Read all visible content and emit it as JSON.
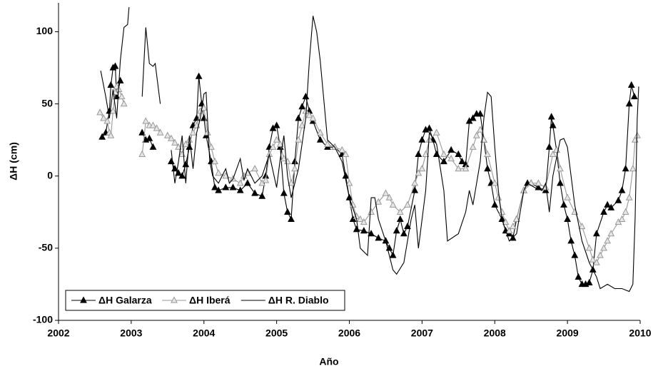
{
  "chart_data": {
    "type": "line",
    "x_label": "Año",
    "y_label": "ΔH (cm)",
    "xlim": [
      2002,
      2010
    ],
    "xticks": [
      2002,
      2003,
      2004,
      2005,
      2006,
      2007,
      2008,
      2009,
      2010
    ],
    "ylim": [
      -100,
      120
    ],
    "yticks": [
      -100,
      -50,
      0,
      50,
      100
    ],
    "legend": "lower left",
    "series": [
      {
        "name": "ΔH Galarza",
        "color": "#000000",
        "marker": "filled-triangle",
        "x": [
          2002.6,
          2002.65,
          2002.7,
          2002.72,
          2002.75,
          2002.78,
          2002.8,
          2002.85,
          2003.0,
          2003.15,
          2003.2,
          2003.25,
          2003.3,
          2003.45,
          2003.55,
          2003.6,
          2003.65,
          2003.7,
          2003.75,
          2003.8,
          2003.85,
          2003.9,
          2003.93,
          2003.97,
          2004.0,
          2004.03,
          2004.1,
          2004.15,
          2004.2,
          2004.3,
          2004.4,
          2004.5,
          2004.6,
          2004.7,
          2004.8,
          2004.85,
          2004.9,
          2004.95,
          2005.0,
          2005.05,
          2005.1,
          2005.15,
          2005.2,
          2005.25,
          2005.3,
          2005.35,
          2005.4,
          2005.45,
          2005.5,
          2005.6,
          2005.7,
          2005.8,
          2005.9,
          2005.95,
          2006.0,
          2006.05,
          2006.1,
          2006.2,
          2006.3,
          2006.4,
          2006.5,
          2006.55,
          2006.6,
          2006.65,
          2006.7,
          2006.75,
          2006.8,
          2006.9,
          2006.95,
          2007.0,
          2007.05,
          2007.1,
          2007.15,
          2007.2,
          2007.3,
          2007.4,
          2007.5,
          2007.55,
          2007.6,
          2007.65,
          2007.7,
          2007.75,
          2007.8,
          2007.85,
          2007.9,
          2007.95,
          2008.0,
          2008.1,
          2008.15,
          2008.2,
          2008.25,
          2008.3,
          2008.4,
          2008.45,
          2008.5,
          2008.6,
          2008.7,
          2008.75,
          2008.78,
          2008.8,
          2008.85,
          2008.9,
          2008.95,
          2009.0,
          2009.05,
          2009.1,
          2009.15,
          2009.2,
          2009.25,
          2009.3,
          2009.35,
          2009.4,
          2009.5,
          2009.55,
          2009.6,
          2009.7,
          2009.75,
          2009.8,
          2009.85,
          2009.88,
          2009.92
        ],
        "values": [
          27,
          30,
          45,
          63,
          75,
          76,
          55,
          66,
          null,
          30,
          25,
          26,
          20,
          null,
          10,
          5,
          2,
          0,
          8,
          20,
          35,
          40,
          69,
          50,
          40,
          28,
          10,
          -8,
          -10,
          -8,
          -8,
          -10,
          -5,
          -12,
          -14,
          0,
          20,
          33,
          35,
          20,
          -12,
          -25,
          -30,
          10,
          40,
          48,
          55,
          45,
          38,
          25,
          20,
          20,
          15,
          0,
          -15,
          -30,
          -37,
          -38,
          -40,
          -43,
          -45,
          -50,
          -55,
          -38,
          -30,
          -40,
          -35,
          -10,
          15,
          25,
          32,
          33,
          25,
          15,
          10,
          18,
          15,
          10,
          8,
          38,
          40,
          43,
          43,
          25,
          5,
          -5,
          -20,
          -30,
          -38,
          -40,
          -43,
          -30,
          -10,
          -5,
          -5,
          -8,
          -10,
          20,
          41,
          35,
          18,
          -5,
          -20,
          -30,
          -45,
          -55,
          -70,
          -75,
          -75,
          -74,
          -65,
          -40,
          -25,
          -20,
          -22,
          -17,
          -10,
          5,
          50,
          63,
          55
        ]
      },
      {
        "name": "ΔH Iberá",
        "color": "#999999",
        "marker": "open-triangle",
        "x": [
          2002.57,
          2002.62,
          2002.67,
          2002.7,
          2002.72,
          2002.75,
          2002.78,
          2002.8,
          2002.83,
          2002.87,
          2002.9,
          2003.0,
          2003.15,
          2003.2,
          2003.25,
          2003.3,
          2003.35,
          2003.4,
          2003.45,
          2003.5,
          2003.55,
          2003.6,
          2003.65,
          2003.7,
          2003.75,
          2003.8,
          2003.85,
          2003.9,
          2003.95,
          2004.0,
          2004.05,
          2004.1,
          2004.15,
          2004.2,
          2004.3,
          2004.4,
          2004.5,
          2004.55,
          2004.6,
          2004.7,
          2004.8,
          2004.85,
          2004.9,
          2004.95,
          2005.0,
          2005.05,
          2005.1,
          2005.15,
          2005.2,
          2005.25,
          2005.3,
          2005.35,
          2005.4,
          2005.45,
          2005.5,
          2005.6,
          2005.7,
          2005.8,
          2005.9,
          2005.95,
          2006.0,
          2006.05,
          2006.1,
          2006.15,
          2006.2,
          2006.3,
          2006.4,
          2006.5,
          2006.55,
          2006.6,
          2006.7,
          2006.8,
          2006.9,
          2006.95,
          2007.0,
          2007.05,
          2007.1,
          2007.2,
          2007.3,
          2007.4,
          2007.5,
          2007.6,
          2007.7,
          2007.75,
          2007.8,
          2007.85,
          2007.9,
          2008.0,
          2008.05,
          2008.1,
          2008.15,
          2008.2,
          2008.25,
          2008.3,
          2008.4,
          2008.5,
          2008.6,
          2008.7,
          2008.8,
          2008.85,
          2008.9,
          2009.0,
          2009.1,
          2009.2,
          2009.3,
          2009.35,
          2009.4,
          2009.45,
          2009.5,
          2009.55,
          2009.6,
          2009.7,
          2009.75,
          2009.8,
          2009.85,
          2009.9,
          2009.93,
          2009.96
        ],
        "values": [
          44,
          40,
          38,
          30,
          28,
          45,
          58,
          62,
          60,
          55,
          50,
          null,
          15,
          38,
          35,
          35,
          33,
          30,
          null,
          28,
          26,
          23,
          20,
          15,
          22,
          25,
          30,
          35,
          45,
          47,
          30,
          20,
          10,
          2,
          0,
          -2,
          -5,
          0,
          2,
          5,
          -5,
          -3,
          15,
          20,
          25,
          22,
          12,
          10,
          -5,
          5,
          25,
          35,
          45,
          42,
          40,
          30,
          22,
          20,
          18,
          15,
          -5,
          -20,
          -28,
          -30,
          -32,
          -25,
          -18,
          -12,
          -15,
          -20,
          -25,
          -20,
          -5,
          2,
          5,
          15,
          25,
          30,
          15,
          12,
          5,
          5,
          20,
          28,
          32,
          25,
          15,
          -5,
          -15,
          -25,
          -32,
          -38,
          -35,
          -30,
          -10,
          -5,
          -5,
          -8,
          15,
          18,
          5,
          -15,
          -25,
          -35,
          -50,
          -58,
          -60,
          -55,
          -50,
          -45,
          -40,
          -32,
          -30,
          -25,
          -15,
          5,
          25,
          28
        ]
      },
      {
        "name": "ΔH R. Diablo",
        "color": "#000000",
        "marker": "none",
        "x": [
          2002.58,
          2002.65,
          2002.7,
          2002.75,
          2002.8,
          2002.85,
          2002.9,
          2002.95,
          2002.97,
          2003.05,
          2003.15,
          2003.2,
          2003.25,
          2003.3,
          2003.33,
          2003.4,
          2003.48,
          2003.55,
          2003.6,
          2003.65,
          2003.7,
          2003.75,
          2003.8,
          2003.85,
          2003.9,
          2003.95,
          2004.0,
          2004.03,
          2004.08,
          2004.12,
          2004.2,
          2004.3,
          2004.35,
          2004.4,
          2004.5,
          2004.55,
          2004.6,
          2004.7,
          2004.8,
          2004.9,
          2005.0,
          2005.05,
          2005.1,
          2005.15,
          2005.2,
          2005.3,
          2005.4,
          2005.45,
          2005.5,
          2005.55,
          2005.6,
          2005.7,
          2005.8,
          2005.9,
          2006.0,
          2006.1,
          2006.15,
          2006.25,
          2006.3,
          2006.35,
          2006.4,
          2006.5,
          2006.6,
          2006.65,
          2006.75,
          2006.85,
          2006.9,
          2006.95,
          2007.05,
          2007.1,
          2007.2,
          2007.3,
          2007.35,
          2007.5,
          2007.6,
          2007.65,
          2007.7,
          2007.8,
          2007.85,
          2007.9,
          2007.95,
          2008.0,
          2008.05,
          2008.1,
          2008.2,
          2008.3,
          2008.4,
          2008.45,
          2008.55,
          2008.65,
          2008.7,
          2008.75,
          2008.8,
          2008.9,
          2008.95,
          2009.0,
          2009.1,
          2009.2,
          2009.3,
          2009.4,
          2009.45,
          2009.55,
          2009.65,
          2009.75,
          2009.85,
          2009.9,
          2009.93,
          2009.96,
          2009.98
        ],
        "values": [
          73,
          55,
          40,
          60,
          40,
          80,
          103,
          105,
          117,
          null,
          55,
          103,
          78,
          76,
          78,
          50,
          null,
          18,
          -5,
          10,
          28,
          -5,
          28,
          5,
          30,
          40,
          57,
          58,
          10,
          0,
          -5,
          5,
          -5,
          -2,
          12,
          -3,
          5,
          -5,
          0,
          15,
          -8,
          12,
          28,
          0,
          -15,
          5,
          40,
          80,
          111,
          100,
          80,
          25,
          20,
          10,
          -15,
          -30,
          -50,
          -55,
          -15,
          -15,
          -30,
          -45,
          -65,
          -68,
          -60,
          -30,
          -20,
          -50,
          -10,
          30,
          22,
          -10,
          -45,
          -40,
          -25,
          -10,
          -20,
          10,
          40,
          58,
          55,
          20,
          -10,
          -30,
          -45,
          -40,
          -10,
          -5,
          -8,
          -10,
          -5,
          -25,
          0,
          25,
          26,
          20,
          -20,
          -45,
          -60,
          -70,
          -78,
          -75,
          -78,
          -78,
          -80,
          -75,
          -30,
          40,
          62
        ]
      }
    ]
  }
}
